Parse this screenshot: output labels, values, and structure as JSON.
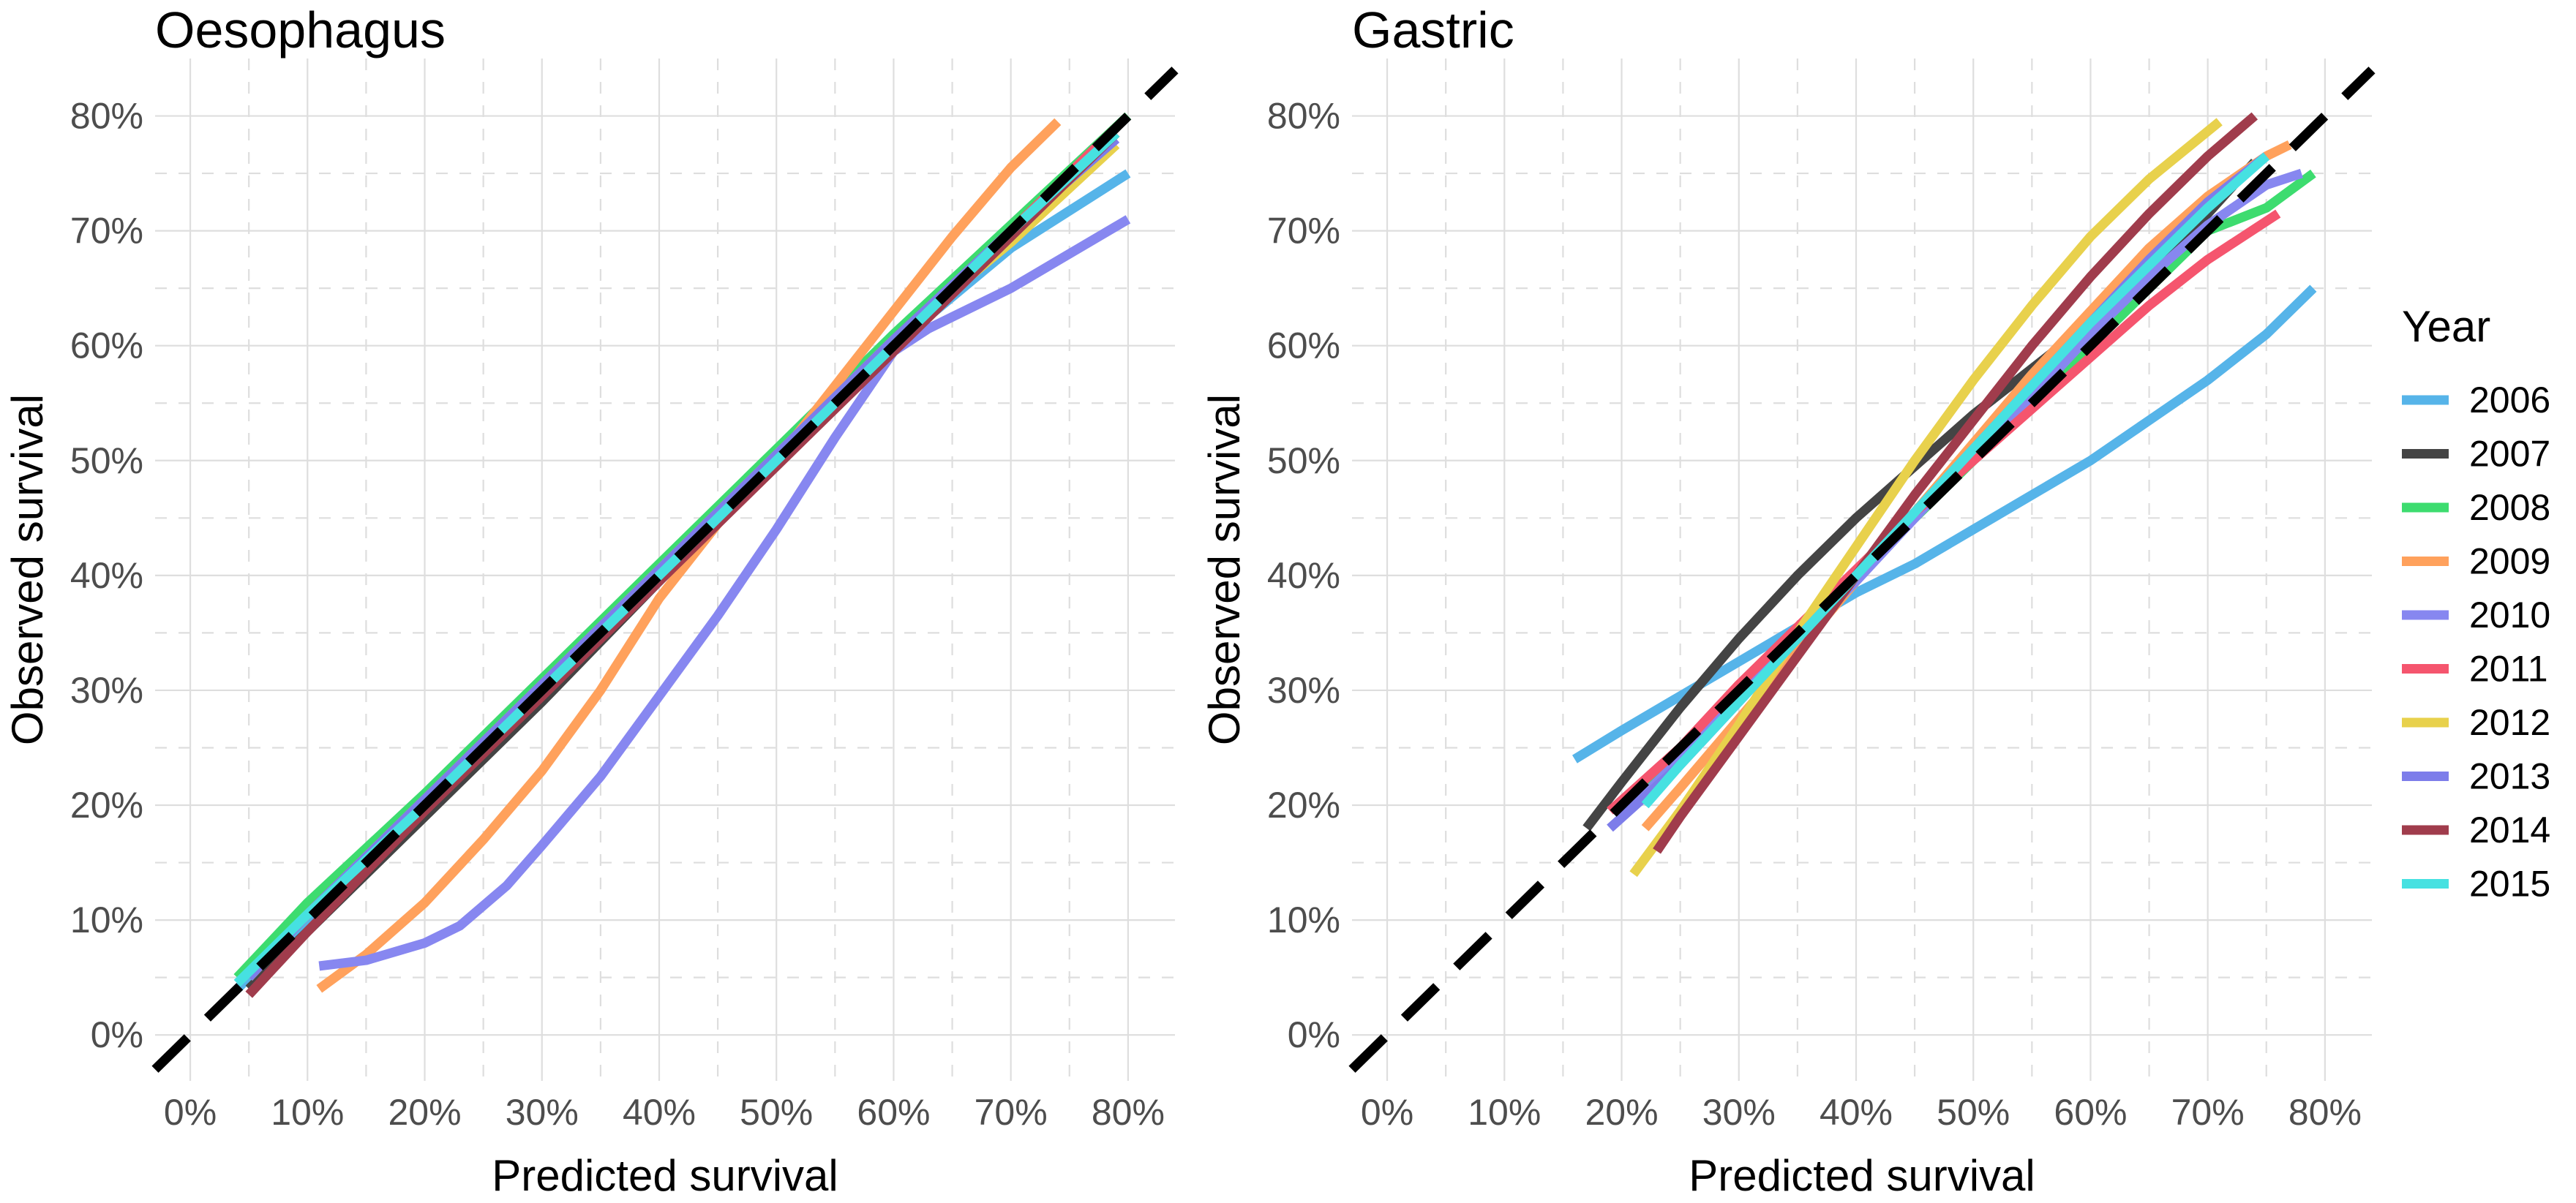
{
  "legend": {
    "title": "Year",
    "entries": [
      {
        "label": "2006",
        "color": "#56B4E9"
      },
      {
        "label": "2007",
        "color": "#444444"
      },
      {
        "label": "2008",
        "color": "#3DDC6F"
      },
      {
        "label": "2009",
        "color": "#FFA15C"
      },
      {
        "label": "2010",
        "color": "#8787F0"
      },
      {
        "label": "2011",
        "color": "#F5556E"
      },
      {
        "label": "2012",
        "color": "#E8D14C"
      },
      {
        "label": "2013",
        "color": "#7D7DEA"
      },
      {
        "label": "2014",
        "color": "#A03C4C"
      },
      {
        "label": "2015",
        "color": "#46E1E1"
      }
    ]
  },
  "chart_data": [
    {
      "type": "line",
      "title": "Oesophagus",
      "xlabel": "Predicted survival",
      "ylabel": "Observed survival",
      "xlim": [
        -3,
        84
      ],
      "ylim": [
        -4,
        85
      ],
      "x_ticks": [
        0,
        10,
        20,
        30,
        40,
        50,
        60,
        70,
        80
      ],
      "x_tick_labels": [
        "0%",
        "10%",
        "20%",
        "30%",
        "40%",
        "50%",
        "60%",
        "70%",
        "80%"
      ],
      "y_ticks": [
        0,
        10,
        20,
        30,
        40,
        50,
        60,
        70,
        80
      ],
      "y_tick_labels": [
        "0%",
        "10%",
        "20%",
        "30%",
        "40%",
        "50%",
        "60%",
        "70%",
        "80%"
      ],
      "reference_line": {
        "label": "y = x",
        "from": -3,
        "to": 84
      },
      "series": [
        {
          "name": "2006",
          "x": [
            4,
            10,
            20,
            30,
            40,
            50,
            60,
            70,
            80
          ],
          "y": [
            4,
            10,
            19.5,
            29.5,
            39.5,
            50,
            60,
            68.5,
            75
          ]
        },
        {
          "name": "2007",
          "x": [
            5,
            10,
            20,
            30,
            40,
            50,
            60,
            70,
            79
          ],
          "y": [
            4,
            9,
            19,
            29,
            39.5,
            50,
            60,
            70,
            79
          ]
        },
        {
          "name": "2008",
          "x": [
            4,
            10,
            20,
            30,
            40,
            50,
            60,
            70,
            80
          ],
          "y": [
            5,
            11.5,
            21,
            31,
            41,
            51,
            61,
            70.5,
            80
          ]
        },
        {
          "name": "2009",
          "x": [
            11,
            15,
            20,
            25,
            30,
            35,
            40,
            45,
            50,
            55,
            60,
            65,
            70,
            74
          ],
          "y": [
            4,
            7,
            11.5,
            17,
            23,
            30,
            38,
            44.5,
            50,
            56.5,
            63,
            69.5,
            75.5,
            79.5
          ]
        },
        {
          "name": "2010",
          "x": [
            11,
            15,
            20,
            23,
            27,
            30,
            35,
            40,
            45,
            50,
            55,
            60,
            63,
            65,
            70,
            75,
            80
          ],
          "y": [
            6,
            6.5,
            8,
            9.5,
            13,
            16.5,
            22.5,
            29.5,
            36.5,
            44,
            52,
            59.5,
            61.5,
            62.5,
            65,
            68,
            71
          ]
        },
        {
          "name": "2011",
          "x": [
            5,
            10,
            20,
            30,
            40,
            50,
            60,
            70,
            79
          ],
          "y": [
            5,
            10.5,
            20.5,
            30.5,
            40.5,
            50.5,
            60.5,
            70,
            79
          ]
        },
        {
          "name": "2012",
          "x": [
            5,
            10,
            20,
            30,
            40,
            50,
            60,
            70,
            79
          ],
          "y": [
            5,
            10.5,
            20.5,
            30.5,
            40.5,
            50.5,
            60.5,
            69,
            77.5
          ]
        },
        {
          "name": "2013",
          "x": [
            5,
            10,
            20,
            30,
            40,
            50,
            60,
            70,
            79
          ],
          "y": [
            5,
            10.5,
            20.5,
            30.5,
            40.5,
            50.5,
            60.5,
            70,
            78
          ]
        },
        {
          "name": "2014",
          "x": [
            5,
            10,
            20,
            30,
            40,
            50,
            60,
            70,
            79
          ],
          "y": [
            3.5,
            9,
            19.5,
            29.5,
            39.5,
            49.5,
            59.5,
            69.5,
            78.5
          ]
        },
        {
          "name": "2015",
          "x": [
            4,
            10,
            20,
            30,
            40,
            50,
            60,
            70,
            79
          ],
          "y": [
            4.5,
            10.5,
            20,
            30,
            40,
            50,
            60,
            70,
            78.5
          ]
        }
      ]
    },
    {
      "type": "line",
      "title": "Gastric",
      "xlabel": "Predicted survival",
      "ylabel": "Observed survival",
      "xlim": [
        -3,
        84
      ],
      "ylim": [
        -4,
        85
      ],
      "x_ticks": [
        0,
        10,
        20,
        30,
        40,
        50,
        60,
        70,
        80
      ],
      "x_tick_labels": [
        "0%",
        "10%",
        "20%",
        "30%",
        "40%",
        "50%",
        "60%",
        "70%",
        "80%"
      ],
      "y_ticks": [
        0,
        10,
        20,
        30,
        40,
        50,
        60,
        70,
        80
      ],
      "y_tick_labels": [
        "0%",
        "10%",
        "20%",
        "30%",
        "40%",
        "50%",
        "60%",
        "70%",
        "80%"
      ],
      "reference_line": {
        "label": "y = x",
        "from": -3,
        "to": 84
      },
      "series": [
        {
          "name": "2006",
          "x": [
            16,
            20,
            25,
            30,
            35,
            40,
            45,
            50,
            55,
            60,
            65,
            70,
            75,
            79
          ],
          "y": [
            24,
            26.5,
            29.5,
            32.5,
            35.5,
            38.5,
            41,
            44,
            47,
            50,
            53.5,
            57,
            61,
            65
          ]
        },
        {
          "name": "2007",
          "x": [
            17,
            20,
            25,
            30,
            35,
            40,
            45,
            50,
            55,
            60,
            65,
            70,
            74
          ],
          "y": [
            18,
            22,
            28.5,
            34.5,
            40,
            45,
            49.5,
            54,
            58,
            62,
            66.5,
            71.5,
            76
          ]
        },
        {
          "name": "2008",
          "x": [
            20,
            25,
            30,
            35,
            40,
            45,
            50,
            55,
            60,
            65,
            70,
            75,
            79
          ],
          "y": [
            20,
            25,
            30,
            35,
            40,
            45,
            50,
            55,
            60,
            65,
            70,
            72,
            75
          ]
        },
        {
          "name": "2009",
          "x": [
            22,
            25,
            30,
            35,
            40,
            45,
            50,
            55,
            60,
            65,
            70,
            75,
            77
          ],
          "y": [
            18,
            21.5,
            27.5,
            33.5,
            39.5,
            45.5,
            51.5,
            57.5,
            63,
            68.5,
            73,
            76.5,
            77.5
          ]
        },
        {
          "name": "2010",
          "x": [
            20,
            25,
            30,
            35,
            40,
            45,
            50,
            55,
            60,
            65,
            70,
            75,
            78
          ],
          "y": [
            19,
            24,
            29.5,
            34.5,
            39.5,
            45,
            50.5,
            55.5,
            61,
            66,
            70.5,
            74,
            75
          ]
        },
        {
          "name": "2011",
          "x": [
            19,
            25,
            30,
            35,
            40,
            45,
            50,
            55,
            60,
            65,
            70,
            76
          ],
          "y": [
            19.5,
            25,
            30.5,
            35.5,
            40.5,
            45.5,
            50,
            54.5,
            59,
            63.5,
            67.5,
            71.5
          ]
        },
        {
          "name": "2012",
          "x": [
            21,
            25,
            30,
            35,
            40,
            45,
            50,
            55,
            60,
            65,
            71
          ],
          "y": [
            14,
            19.5,
            27,
            35,
            42.5,
            50,
            57,
            63.5,
            69.5,
            74.5,
            79.5
          ]
        },
        {
          "name": "2013",
          "x": [
            19,
            25,
            30,
            35,
            40,
            45,
            50,
            55,
            60,
            65,
            70,
            75
          ],
          "y": [
            18,
            23.5,
            29,
            34.5,
            40,
            45.5,
            51,
            56.5,
            62,
            67.5,
            72.5,
            76.5
          ]
        },
        {
          "name": "2014",
          "x": [
            23,
            25,
            30,
            35,
            40,
            45,
            50,
            55,
            60,
            65,
            70,
            74
          ],
          "y": [
            16,
            19,
            26,
            33,
            40,
            47,
            53.5,
            60,
            66,
            71.5,
            76.5,
            80
          ]
        },
        {
          "name": "2015",
          "x": [
            22,
            25,
            30,
            35,
            40,
            45,
            50,
            55,
            60,
            65,
            70,
            75
          ],
          "y": [
            20,
            23.5,
            29,
            34.5,
            40,
            45.5,
            51,
            56.5,
            62,
            67,
            72,
            76.5
          ]
        }
      ]
    }
  ]
}
